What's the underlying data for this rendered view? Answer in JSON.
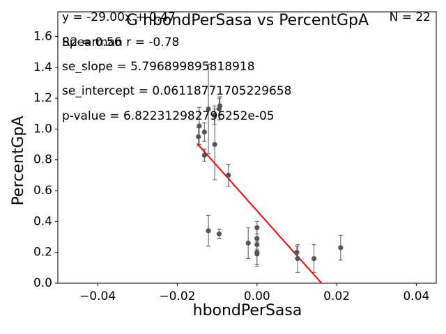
{
  "chart_data": {
    "type": "scatter",
    "title": "G hbondPerSasa vs PercentGpA",
    "xlabel": "hbondPerSasa",
    "ylabel": "PercentGpA",
    "xlim": [
      -0.05,
      0.045
    ],
    "ylim": [
      0.0,
      1.76
    ],
    "x_ticks": [
      -0.04,
      -0.02,
      0.0,
      0.02,
      0.04
    ],
    "x_tick_labels": [
      "−0.04",
      "−0.02",
      "0.00",
      "0.02",
      "0.04"
    ],
    "y_ticks": [
      0.0,
      0.2,
      0.4,
      0.6,
      0.8,
      1.0,
      1.2,
      1.4,
      1.6
    ],
    "y_tick_labels": [
      "0.0",
      "0.2",
      "0.4",
      "0.6",
      "0.8",
      "1.0",
      "1.2",
      "1.4",
      "1.6"
    ],
    "grid": false,
    "points": [
      {
        "x": -0.0147,
        "y": 0.95,
        "err": 0.06
      },
      {
        "x": -0.0145,
        "y": 1.02,
        "err": 0.12
      },
      {
        "x": -0.0132,
        "y": 0.83,
        "err": 0.04
      },
      {
        "x": -0.0132,
        "y": 0.98,
        "err": 0.06
      },
      {
        "x": -0.0122,
        "y": 1.13,
        "err": 0.29
      },
      {
        "x": -0.0122,
        "y": 0.34,
        "err": 0.1
      },
      {
        "x": -0.0107,
        "y": 1.09,
        "err": 0.06
      },
      {
        "x": -0.0106,
        "y": 0.9,
        "err": 0.23
      },
      {
        "x": -0.0095,
        "y": 1.13,
        "err": 0.07
      },
      {
        "x": -0.0093,
        "y": 1.15,
        "err": 0.06
      },
      {
        "x": -0.0095,
        "y": 0.32,
        "err": 0.03
      },
      {
        "x": -0.0072,
        "y": 0.7,
        "err": 0.07
      },
      {
        "x": -0.0022,
        "y": 0.26,
        "err": 0.1
      },
      {
        "x": 0.0,
        "y": 0.36,
        "err": 0.04
      },
      {
        "x": 0.0,
        "y": 0.29,
        "err": 0.07
      },
      {
        "x": 0.0,
        "y": 0.25,
        "err": 0.05
      },
      {
        "x": 0.0,
        "y": 0.2,
        "err": 0.08
      },
      {
        "x": 0.0,
        "y": 0.19,
        "err": 0.08
      },
      {
        "x": 0.01,
        "y": 0.2,
        "err": 0.04
      },
      {
        "x": 0.0102,
        "y": 0.16,
        "err": 0.09
      },
      {
        "x": 0.0143,
        "y": 0.16,
        "err": 0.09
      },
      {
        "x": 0.021,
        "y": 0.23,
        "err": 0.08
      }
    ],
    "fit_line": {
      "slope": -29.0,
      "intercept": 0.47,
      "x_range": [
        -0.015,
        0.0162
      ],
      "color": "#ff0000"
    },
    "point_color": "#555555",
    "errorbar_color": "#707070"
  },
  "annotations": {
    "equation": "y = -29.00x + 0.47",
    "r2": "R2 = 0.56",
    "spearman": "Spearman r = -0.78",
    "se_slope": "se_slope = 5.796899895818918",
    "se_intercept": "se_intercept = 0.06118771705229658",
    "p_value": "p-value = 6.822312982796252e-05",
    "n": "N = 22"
  }
}
